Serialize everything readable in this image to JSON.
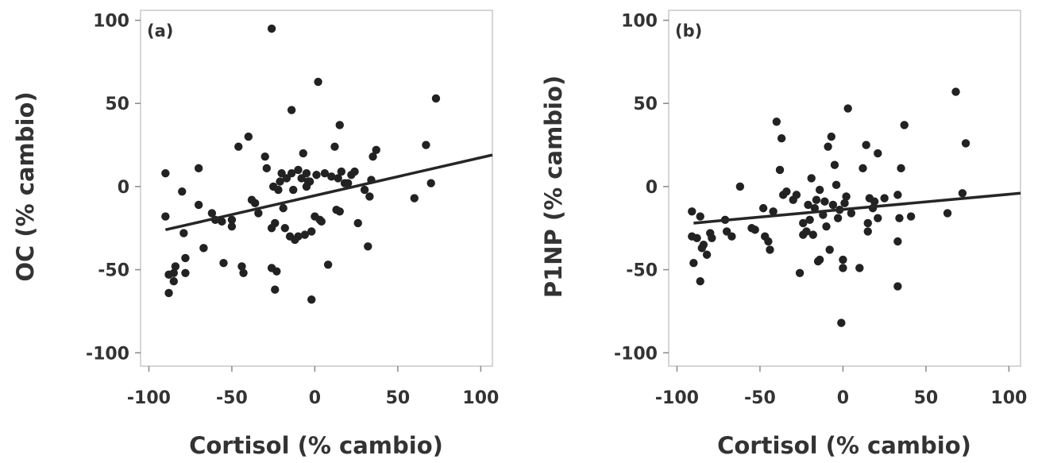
{
  "chart_data": [
    {
      "type": "scatter",
      "panel_label": "(a)",
      "xlabel": "Cortisol (% cambio)",
      "ylabel": "OC  (% cambio)",
      "xlim": [
        -105,
        107
      ],
      "ylim": [
        -108,
        106
      ],
      "x_ticks": [
        -100,
        -50,
        0,
        50,
        100
      ],
      "y_ticks": [
        100,
        50,
        0,
        -50,
        -100
      ],
      "x_tick_labels": [
        "-100",
        "-50",
        "0",
        "50",
        "100"
      ],
      "y_tick_labels": [
        "100",
        "50",
        "0",
        "-50",
        "-100"
      ],
      "grid": false,
      "color": "#222222",
      "points": [
        [
          -90,
          8
        ],
        [
          -90,
          -18
        ],
        [
          -88,
          -64
        ],
        [
          -88,
          -53
        ],
        [
          -85,
          -52
        ],
        [
          -85,
          -57
        ],
        [
          -84,
          -48
        ],
        [
          -80,
          -3
        ],
        [
          -79,
          -28
        ],
        [
          -78,
          -43
        ],
        [
          -78,
          -52
        ],
        [
          -70,
          11
        ],
        [
          -70,
          -11
        ],
        [
          -67,
          -37
        ],
        [
          -62,
          -16
        ],
        [
          -60,
          -20
        ],
        [
          -56,
          -21
        ],
        [
          -55,
          -46
        ],
        [
          -50,
          -20
        ],
        [
          -50,
          -24
        ],
        [
          -46,
          24
        ],
        [
          -44,
          -48
        ],
        [
          -43,
          -52
        ],
        [
          -40,
          30
        ],
        [
          -38,
          -8
        ],
        [
          -36,
          -10
        ],
        [
          -34,
          -16
        ],
        [
          -30,
          18
        ],
        [
          -29,
          11
        ],
        [
          -26,
          95
        ],
        [
          -26,
          -25
        ],
        [
          -26,
          -49
        ],
        [
          -25,
          0
        ],
        [
          -24,
          -62
        ],
        [
          -24,
          -22
        ],
        [
          -23,
          -51
        ],
        [
          -22,
          -2
        ],
        [
          -21,
          3
        ],
        [
          -20,
          8
        ],
        [
          -19,
          -13
        ],
        [
          -18,
          -25
        ],
        [
          -17,
          5
        ],
        [
          -15,
          -30
        ],
        [
          -14,
          46
        ],
        [
          -14,
          8
        ],
        [
          -13,
          -2
        ],
        [
          -12,
          -32
        ],
        [
          -10,
          10
        ],
        [
          -10,
          -30
        ],
        [
          -8,
          5
        ],
        [
          -7,
          20
        ],
        [
          -6,
          -29
        ],
        [
          -5,
          8
        ],
        [
          -5,
          0
        ],
        [
          -4,
          3
        ],
        [
          -3,
          3
        ],
        [
          -2,
          -68
        ],
        [
          -2,
          -27
        ],
        [
          0,
          -18
        ],
        [
          1,
          7
        ],
        [
          2,
          63
        ],
        [
          3,
          -20
        ],
        [
          4,
          -21
        ],
        [
          6,
          8
        ],
        [
          8,
          -47
        ],
        [
          10,
          6
        ],
        [
          12,
          24
        ],
        [
          13,
          -14
        ],
        [
          14,
          5
        ],
        [
          15,
          37
        ],
        [
          15,
          -15
        ],
        [
          16,
          9
        ],
        [
          18,
          2
        ],
        [
          20,
          2
        ],
        [
          22,
          7
        ],
        [
          24,
          9
        ],
        [
          26,
          -22
        ],
        [
          30,
          -2
        ],
        [
          32,
          -36
        ],
        [
          33,
          -6
        ],
        [
          34,
          4
        ],
        [
          35,
          18
        ],
        [
          37,
          22
        ],
        [
          60,
          -7
        ],
        [
          67,
          25
        ],
        [
          70,
          2
        ],
        [
          73,
          53
        ]
      ],
      "trend_line": [
        [
          -90,
          -26
        ],
        [
          107,
          19
        ]
      ]
    },
    {
      "type": "scatter",
      "panel_label": "(b)",
      "xlabel": "Cortisol (% cambio)",
      "ylabel": "P1NP (% cambio)",
      "xlim": [
        -105,
        107
      ],
      "ylim": [
        -108,
        106
      ],
      "x_ticks": [
        -100,
        -50,
        0,
        50,
        100
      ],
      "y_ticks": [
        100,
        50,
        0,
        -50,
        -100
      ],
      "x_tick_labels": [
        "-100",
        "-50",
        "0",
        "50",
        "100"
      ],
      "y_tick_labels": [
        "100",
        "50",
        "0",
        "-50",
        "-100"
      ],
      "grid": false,
      "color": "#222222",
      "points": [
        [
          -91,
          -15
        ],
        [
          -91,
          -30
        ],
        [
          -90,
          -46
        ],
        [
          -88,
          -31
        ],
        [
          -86,
          -18
        ],
        [
          -86,
          -57
        ],
        [
          -85,
          -37
        ],
        [
          -84,
          -35
        ],
        [
          -82,
          -41
        ],
        [
          -80,
          -28
        ],
        [
          -79,
          -31
        ],
        [
          -71,
          -20
        ],
        [
          -70,
          -27
        ],
        [
          -67,
          -30
        ],
        [
          -62,
          0
        ],
        [
          -55,
          -25
        ],
        [
          -53,
          -26
        ],
        [
          -48,
          -13
        ],
        [
          -47,
          -30
        ],
        [
          -45,
          -33
        ],
        [
          -44,
          -38
        ],
        [
          -42,
          -15
        ],
        [
          -40,
          39
        ],
        [
          -38,
          10
        ],
        [
          -37,
          29
        ],
        [
          -36,
          -5
        ],
        [
          -34,
          -3
        ],
        [
          -30,
          -8
        ],
        [
          -28,
          -5
        ],
        [
          -26,
          -52
        ],
        [
          -24,
          -22
        ],
        [
          -24,
          -29
        ],
        [
          -22,
          -27
        ],
        [
          -21,
          -11
        ],
        [
          -20,
          -20
        ],
        [
          -19,
          5
        ],
        [
          -18,
          -29
        ],
        [
          -17,
          -13
        ],
        [
          -16,
          -8
        ],
        [
          -15,
          -45
        ],
        [
          -14,
          -44
        ],
        [
          -14,
          -2
        ],
        [
          -12,
          -17
        ],
        [
          -11,
          -9
        ],
        [
          -10,
          -24
        ],
        [
          -9,
          24
        ],
        [
          -8,
          -38
        ],
        [
          -7,
          30
        ],
        [
          -6,
          -11
        ],
        [
          -5,
          13
        ],
        [
          -4,
          1
        ],
        [
          -3,
          -19
        ],
        [
          -2,
          -14
        ],
        [
          -1,
          -82
        ],
        [
          0,
          -44
        ],
        [
          0,
          -49
        ],
        [
          1,
          -10
        ],
        [
          2,
          -6
        ],
        [
          3,
          47
        ],
        [
          5,
          -16
        ],
        [
          10,
          -49
        ],
        [
          12,
          11
        ],
        [
          14,
          25
        ],
        [
          15,
          -22
        ],
        [
          15,
          -27
        ],
        [
          16,
          -7
        ],
        [
          18,
          -13
        ],
        [
          19,
          -9
        ],
        [
          21,
          -19
        ],
        [
          21,
          20
        ],
        [
          25,
          -7
        ],
        [
          33,
          -5
        ],
        [
          33,
          -33
        ],
        [
          33,
          -60
        ],
        [
          34,
          -19
        ],
        [
          35,
          11
        ],
        [
          37,
          37
        ],
        [
          41,
          -18
        ],
        [
          63,
          -16
        ],
        [
          68,
          57
        ],
        [
          72,
          -4
        ],
        [
          74,
          26
        ]
      ],
      "trend_line": [
        [
          -90,
          -22
        ],
        [
          107,
          -4
        ]
      ]
    }
  ]
}
